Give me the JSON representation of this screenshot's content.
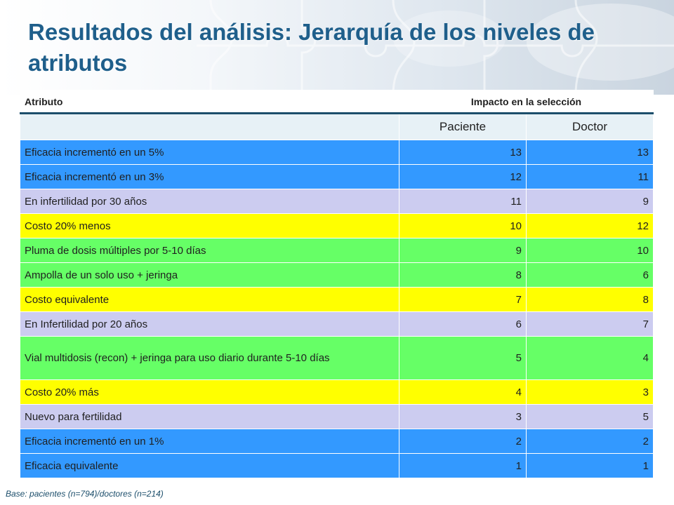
{
  "title": "Resultados del análisis: Jerarquía de los niveles de atributos",
  "table": {
    "header_attribute": "Atributo",
    "header_impact": "Impacto en la selección",
    "sub_patient": "Paciente",
    "sub_doctor": "Doctor",
    "rows": [
      {
        "attribute": "Eficacia incrementó en un 5%",
        "patient": "13",
        "doctor": "13",
        "color": "#3399ff"
      },
      {
        "attribute": "Eficacia incrementó en un 3%",
        "patient": "12",
        "doctor": "11",
        "color": "#3399ff"
      },
      {
        "attribute": "En infertilidad por 30 años",
        "patient": "11",
        "doctor": "9",
        "color": "#ccccf0"
      },
      {
        "attribute": "Costo 20%  menos",
        "patient": "10",
        "doctor": "12",
        "color": "#ffff00"
      },
      {
        "attribute": "Pluma de dosis múltiples por 5-10 días",
        "patient": "9",
        "doctor": "10",
        "color": "#66ff66"
      },
      {
        "attribute": "Ampolla de un solo uso + jeringa",
        "patient": "8",
        "doctor": "6",
        "color": "#66ff66"
      },
      {
        "attribute": "Costo equivalente",
        "patient": "7",
        "doctor": "8",
        "color": "#ffff00"
      },
      {
        "attribute": "En Infertilidad por 20 años",
        "patient": "6",
        "doctor": "7",
        "color": "#ccccf0"
      },
      {
        "attribute": "Vial multidosis (recon) + jeringa para uso diario durante 5-10 días",
        "patient": "5",
        "doctor": "4",
        "color": "#66ff66"
      },
      {
        "attribute": "Costo 20% más",
        "patient": "4",
        "doctor": "3",
        "color": "#ffff00"
      },
      {
        "attribute": "Nuevo para fertilidad",
        "patient": "3",
        "doctor": "5",
        "color": "#ccccf0"
      },
      {
        "attribute": "Eficacia incrementó en un 1%",
        "patient": "2",
        "doctor": "2",
        "color": "#3399ff"
      },
      {
        "attribute": "Eficacia equivalente",
        "patient": "1",
        "doctor": "1",
        "color": "#3399ff"
      }
    ]
  },
  "footnote": "Base: pacientes (n=794)/doctores (n=214)"
}
